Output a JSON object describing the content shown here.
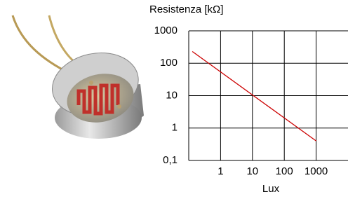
{
  "chart_data": {
    "type": "line",
    "y_label": "Resistenza [kΩ]",
    "x_label": "Lux",
    "x": [
      0.13,
      1000
    ],
    "series": [
      {
        "color": "#cc0000",
        "values": [
          230,
          0.4
        ]
      }
    ],
    "xscale": "log",
    "yscale": "log",
    "xlim": [
      0.1,
      10000
    ],
    "ylim": [
      0.1,
      1000
    ],
    "xticks": [
      1,
      10,
      100,
      1000
    ],
    "yticks": [
      {
        "value": 0.1,
        "label": "0,1"
      },
      1,
      10,
      100,
      1000
    ],
    "grid": true,
    "grid_color": "#000000"
  }
}
